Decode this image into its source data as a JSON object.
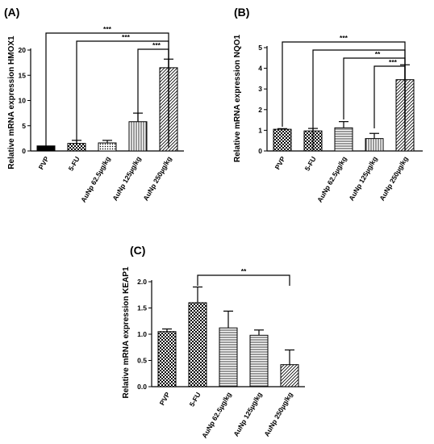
{
  "chart_data": [
    {
      "type": "bar",
      "panel_label": "(A)",
      "ylabel": "Relative mRNA expression HMOX1",
      "ylim": [
        0,
        20
      ],
      "yticks": [
        0,
        5,
        10,
        15,
        20
      ],
      "categories": [
        "PVP",
        "5-FU",
        "AuNp 62.5µg/kg",
        "AuNp 125µg/kg",
        "AuNp 250µg/kg"
      ],
      "values": [
        1.0,
        1.5,
        1.6,
        5.8,
        16.5
      ],
      "errors": [
        0.0,
        0.6,
        0.5,
        1.7,
        1.7
      ],
      "patterns": [
        "solid",
        "checker",
        "dots",
        "vlines",
        "diag"
      ],
      "significance": [
        {
          "from": 0,
          "to": 4,
          "label": "***"
        },
        {
          "from": 1,
          "to": 4,
          "label": "***"
        },
        {
          "from": 3,
          "to": 4,
          "label": "***"
        }
      ]
    },
    {
      "type": "bar",
      "panel_label": "(B)",
      "ylabel": "Relative mRNA expression NQO1",
      "ylim": [
        0,
        5
      ],
      "yticks": [
        0,
        1,
        2,
        3,
        4,
        5
      ],
      "categories": [
        "PVP",
        "5-FU",
        "AuNp 62.5µg/kg",
        "AuNp 125µg/kg",
        "AuNp 250µg/kg"
      ],
      "values": [
        1.05,
        0.97,
        1.12,
        0.6,
        3.45
      ],
      "errors": [
        0.03,
        0.12,
        0.3,
        0.25,
        0.72
      ],
      "patterns": [
        "checker",
        "checker",
        "hlines",
        "vlines",
        "diag"
      ],
      "significance": [
        {
          "from": 0,
          "to": 4,
          "label": "***"
        },
        {
          "from": 1,
          "to": 4,
          "label": ""
        },
        {
          "from": 2,
          "to": 4,
          "label": "**"
        },
        {
          "from": 3,
          "to": 4,
          "label": "***"
        }
      ]
    },
    {
      "type": "bar",
      "panel_label": "(C)",
      "ylabel": "Relative mRNA expression KEAP1",
      "ylim": [
        0,
        2.0
      ],
      "yticks": [
        "0.0",
        "0.5",
        "1.0",
        "1.5",
        "2.0"
      ],
      "categories": [
        "PVP",
        "5-FU",
        "AuNp 62.5µg/kg",
        "AuNp 125µg/kg",
        "AuNp 250µg/kg"
      ],
      "values": [
        1.05,
        1.6,
        1.12,
        0.98,
        0.42
      ],
      "errors": [
        0.05,
        0.3,
        0.32,
        0.1,
        0.28
      ],
      "patterns": [
        "checker",
        "checker",
        "hlines",
        "hlines",
        "diag"
      ],
      "significance": [
        {
          "from": 1,
          "to": 4,
          "label": "**"
        }
      ]
    }
  ]
}
